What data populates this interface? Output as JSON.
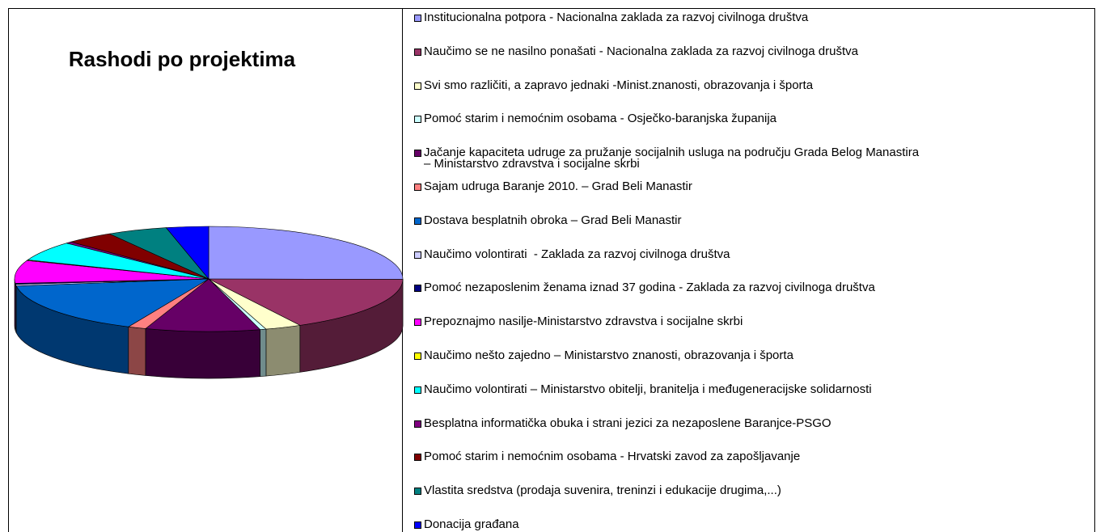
{
  "chart_data": {
    "type": "pie3d",
    "title": "Rashodi po projektima",
    "series": [
      {
        "name": "Institucionalna potpora - Nacionalna zaklada za razvoj civilnoga društva",
        "color": "#9999ff",
        "values": [
          25
        ]
      },
      {
        "name": "Naučimo se ne nasilno ponašati - Nacionalna zaklada za razvoj civilnoga društva",
        "color": "#993366",
        "values": [
          17
        ]
      },
      {
        "name": "Svi smo različiti, a zapravo jednaki -Minist.znanosti, obrazovanja i športa",
        "color": "#ffffcc",
        "values": [
          3
        ]
      },
      {
        "name": "Pomoć starim i nemoćnim osobama - Osječko-baranjska županija",
        "color": "#ccffff",
        "values": [
          0.5
        ]
      },
      {
        "name": "Jačanje kapaciteta udruge za pružanje socijalnih usluga na području Grada Belog Manastira\n– Ministarstvo zdravstva i socijalne skrbi",
        "color": "#660066",
        "values": [
          9.5
        ]
      },
      {
        "name": "Sajam udruga Baranje 2010. – Grad Beli Manastir",
        "color": "#ff8080",
        "values": [
          1.5
        ]
      },
      {
        "name": "Dostava besplatnih obroka – Grad Beli Manastir",
        "color": "#0066cc",
        "values": [
          16
        ]
      },
      {
        "name": "Naučimo volontirati  - Zaklada za razvoj civilnoga društva",
        "color": "#ccccff",
        "values": [
          0.5
        ]
      },
      {
        "name": "Pomoć nezaposlenim ženama iznad 37 godina - Zaklada za razvoj civilnoga društva",
        "color": "#000080",
        "values": [
          0.3
        ]
      },
      {
        "name": "Prepoznajmo nasilje-Ministarstvo zdravstva i socijalne skrbi",
        "color": "#ff00ff",
        "values": [
          7
        ]
      },
      {
        "name": "Naučimo nešto zajedno – Ministarstvo znanosti, obrazovanja i športa",
        "color": "#ffff00",
        "values": [
          0.2
        ]
      },
      {
        "name": "Naučimo volontirati – Ministarstvo obitelji, branitelja i međugeneracijske solidarnosti",
        "color": "#00ffff",
        "values": [
          6
        ]
      },
      {
        "name": "Besplatna informatička obuka i strani jezici za nezaposlene Baranjce-PSGO",
        "color": "#800080",
        "values": [
          0.5
        ]
      },
      {
        "name": "Pomoć starim i nemoćnim osobama - Hrvatski zavod za zapošljavanje",
        "color": "#800000",
        "values": [
          4
        ]
      },
      {
        "name": "Vlastita sredstva (prodaja suvenira, treninzi i edukacije drugima,...)",
        "color": "#008080",
        "values": [
          5
        ]
      },
      {
        "name": "Donacija građana",
        "color": "#0000ff",
        "values": [
          3.5
        ]
      }
    ]
  }
}
